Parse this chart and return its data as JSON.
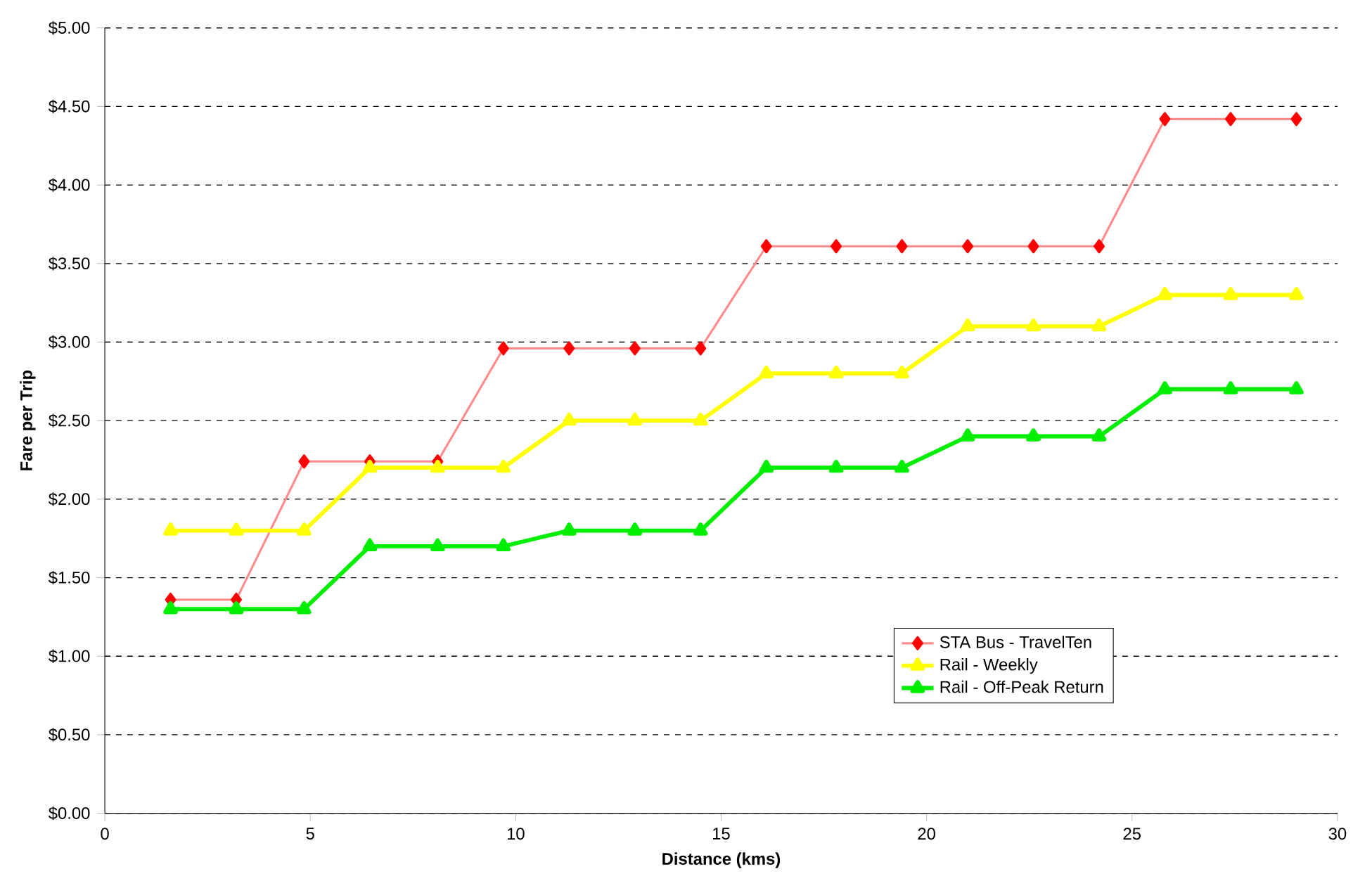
{
  "chart_data": {
    "type": "line",
    "xlabel": "Distance (kms)",
    "ylabel": "Fare per Trip",
    "x": [
      1.6,
      3.2,
      4.85,
      6.45,
      8.1,
      9.7,
      11.3,
      12.9,
      14.5,
      16.1,
      17.8,
      19.4,
      21.0,
      22.6,
      24.2,
      25.8,
      27.4,
      29.0
    ],
    "series": [
      {
        "name": "STA Bus - TravelTen",
        "color": "#ff0000",
        "marker": "diamond",
        "values": [
          1.36,
          1.36,
          2.24,
          2.24,
          2.24,
          2.96,
          2.96,
          2.96,
          2.96,
          3.61,
          3.61,
          3.61,
          3.61,
          3.61,
          3.61,
          4.42,
          4.42,
          4.42
        ]
      },
      {
        "name": "Rail - Weekly",
        "color": "#ffff00",
        "marker": "triangle",
        "values": [
          1.8,
          1.8,
          1.8,
          2.2,
          2.2,
          2.2,
          2.5,
          2.5,
          2.5,
          2.8,
          2.8,
          2.8,
          3.1,
          3.1,
          3.1,
          3.3,
          3.3,
          3.3
        ]
      },
      {
        "name": "Rail - Off-Peak Return",
        "color": "#00ee00",
        "marker": "triangle",
        "values": [
          1.3,
          1.3,
          1.3,
          1.7,
          1.7,
          1.7,
          1.8,
          1.8,
          1.8,
          2.2,
          2.2,
          2.2,
          2.4,
          2.4,
          2.4,
          2.7,
          2.7,
          2.7
        ]
      }
    ],
    "xlim": [
      0,
      30
    ],
    "xticks": [
      0,
      5,
      10,
      15,
      20,
      25,
      30
    ],
    "ylim": [
      0,
      5
    ],
    "yticks": [
      {
        "value": 0,
        "label": "$0.00"
      },
      {
        "value": 0.5,
        "label": "$0.50"
      },
      {
        "value": 1,
        "label": "$1.00"
      },
      {
        "value": 1.5,
        "label": "$1.50"
      },
      {
        "value": 2,
        "label": "$2.00"
      },
      {
        "value": 2.5,
        "label": "$2.50"
      },
      {
        "value": 3,
        "label": "$3.00"
      },
      {
        "value": 3.5,
        "label": "$3.50"
      },
      {
        "value": 4,
        "label": "$4.00"
      },
      {
        "value": 4.5,
        "label": "$4.50"
      },
      {
        "value": 5,
        "label": "$5.00"
      }
    ],
    "grid": "y",
    "legend": "bottom right",
    "line_style": "solid"
  }
}
